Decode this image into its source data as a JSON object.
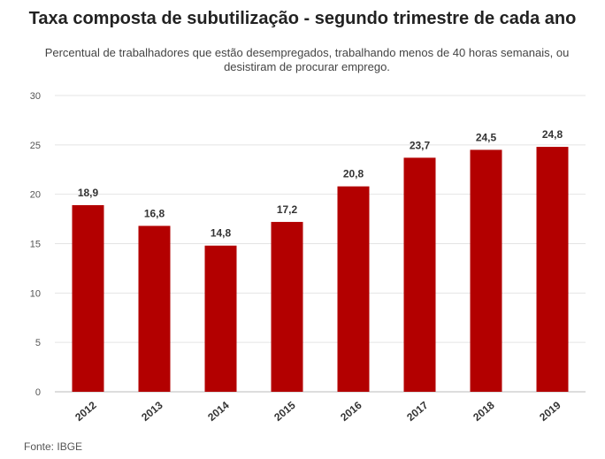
{
  "chart_data": {
    "type": "bar",
    "title": "Taxa composta de subutilização - segundo trimestre de cada ano",
    "subtitle": "Percentual de trabalhadores que estão desempregados, trabalhando menos de 40 horas semanais, ou desistiram de procurar emprego.",
    "categories": [
      "2012",
      "2013",
      "2014",
      "2015",
      "2016",
      "2017",
      "2018",
      "2019"
    ],
    "values": [
      18.9,
      16.8,
      14.8,
      17.2,
      20.8,
      23.7,
      24.5,
      24.8
    ],
    "value_labels": [
      "18,9",
      "16,8",
      "14,8",
      "17,2",
      "20,8",
      "23,7",
      "24,5",
      "24,8"
    ],
    "yticks": [
      0,
      5,
      10,
      15,
      20,
      25,
      30
    ],
    "ylim": [
      0,
      30
    ],
    "xlabel": "",
    "ylabel": "",
    "grid": true,
    "bar_color": "#b30000"
  },
  "source": "Fonte: IBGE"
}
